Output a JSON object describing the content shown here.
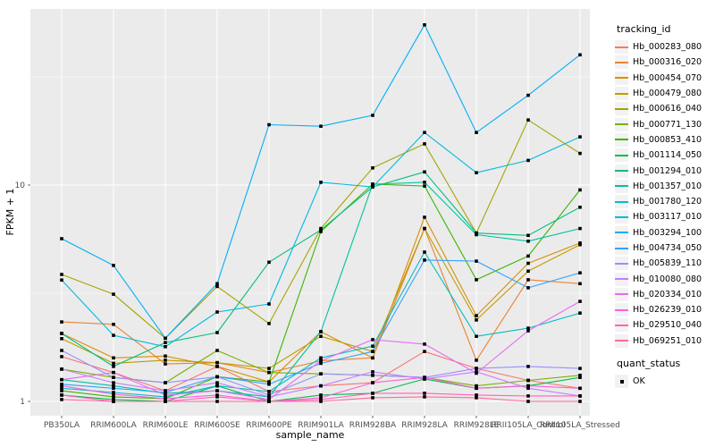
{
  "legend": {
    "tracking_title": "tracking_id",
    "quant_title": "quant_status",
    "quant_items": [
      {
        "label": "OK",
        "shape": "filled-square",
        "color": "#000000"
      }
    ]
  },
  "colors": {
    "panel_bg": "#EBEBEB",
    "grid": "#FFFFFF",
    "tick_label": "#4D4D4D",
    "axis_title": "#000000",
    "legend_key_bg": "#F2F2F2",
    "point": "#000000"
  },
  "chart_data": {
    "type": "line",
    "title": "",
    "xlabel": "sample_name",
    "ylabel": "FPKM + 1",
    "y_scale": "log10",
    "y_tick_labels": [
      "1",
      "10"
    ],
    "y_ticks": [
      1,
      10
    ],
    "y_minor_gridlines": [
      3.1623,
      31.6228
    ],
    "ylim": [
      0.86,
      66
    ],
    "grid": "on",
    "legend_position": "right",
    "point_shape": "filled-square",
    "categories": [
      "PB350LA",
      "RRIM600LA",
      "RRIM600LE",
      "RRIM600SE",
      "RRIM600PE",
      "RRIM901LA",
      "RRIM928BA",
      "RRIM928LA",
      "RRIM928LE",
      "RRII105LA_Control",
      "RRII105LA_Stressed"
    ],
    "series": [
      {
        "name": "Hb_000283_080",
        "color": "#F8766D",
        "values": [
          1.61,
          1.36,
          1.12,
          1.45,
          1.11,
          1.18,
          1.22,
          1.7,
          1.42,
          1.25,
          1.15
        ]
      },
      {
        "name": "Hb_000316_020",
        "color": "#EA8331",
        "values": [
          2.33,
          2.27,
          1.49,
          1.51,
          1.36,
          1.54,
          1.59,
          6.3,
          1.55,
          3.65,
          3.5
        ]
      },
      {
        "name": "Hb_000454_070",
        "color": "#D89000",
        "values": [
          2.06,
          1.59,
          1.62,
          1.45,
          1.23,
          2.1,
          1.59,
          7.1,
          2.49,
          4.35,
          5.4
        ]
      },
      {
        "name": "Hb_000479_080",
        "color": "#C09B00",
        "values": [
          1.95,
          1.5,
          1.55,
          1.51,
          1.42,
          2.0,
          1.7,
          6.3,
          2.38,
          4.0,
          5.3
        ]
      },
      {
        "name": "Hb_000616_040",
        "color": "#A3A500",
        "values": [
          3.86,
          3.13,
          1.96,
          3.4,
          2.29,
          6.3,
          12.0,
          15.5,
          6.0,
          20.0,
          14.0
        ]
      },
      {
        "name": "Hb_000771_130",
        "color": "#7CAE00",
        "values": [
          1.41,
          1.29,
          1.22,
          1.72,
          1.36,
          1.34,
          1.32,
          1.29,
          1.18,
          1.25,
          1.32
        ]
      },
      {
        "name": "Hb_000853_410",
        "color": "#39B600",
        "values": [
          1.12,
          1.05,
          1.03,
          1.3,
          1.23,
          6.1,
          10.1,
          9.9,
          3.65,
          4.7,
          9.5
        ]
      },
      {
        "name": "Hb_001114_050",
        "color": "#00BB4E",
        "values": [
          1.07,
          1.02,
          1.0,
          1.18,
          1.0,
          1.07,
          1.09,
          1.27,
          1.15,
          1.18,
          1.29
        ]
      },
      {
        "name": "Hb_001294_010",
        "color": "#00BF7D",
        "values": [
          2.06,
          1.45,
          1.87,
          2.08,
          4.4,
          6.2,
          9.8,
          11.5,
          6.0,
          5.85,
          7.9
        ]
      },
      {
        "name": "Hb_001357_010",
        "color": "#00C1A3",
        "values": [
          1.26,
          1.18,
          1.09,
          1.12,
          1.05,
          2.1,
          10.1,
          10.3,
          5.9,
          5.5,
          6.3
        ]
      },
      {
        "name": "Hb_001780_120",
        "color": "#00BFC4",
        "values": [
          1.15,
          1.1,
          1.05,
          1.18,
          1.11,
          1.59,
          1.8,
          4.9,
          2.0,
          2.18,
          2.56
        ]
      },
      {
        "name": "Hb_003117_010",
        "color": "#00BAE0",
        "values": [
          3.64,
          2.02,
          1.79,
          2.59,
          2.82,
          10.3,
          9.8,
          17.5,
          11.4,
          13.0,
          16.7
        ]
      },
      {
        "name": "Hb_003294_100",
        "color": "#00B0F6",
        "values": [
          5.65,
          4.25,
          1.96,
          3.5,
          19.0,
          18.7,
          21.0,
          55.0,
          17.5,
          26.0,
          40.0
        ]
      },
      {
        "name": "Hb_004734_050",
        "color": "#35A2FF",
        "values": [
          1.2,
          1.15,
          1.1,
          1.3,
          1.2,
          1.5,
          1.7,
          4.5,
          4.45,
          3.35,
          3.93
        ]
      },
      {
        "name": "Hb_005839_110",
        "color": "#9590FF",
        "values": [
          1.72,
          1.29,
          1.22,
          1.3,
          1.07,
          1.34,
          1.32,
          1.29,
          1.42,
          1.45,
          1.42
        ]
      },
      {
        "name": "Hb_010080_080",
        "color": "#C77CFF",
        "values": [
          1.41,
          1.22,
          1.12,
          1.22,
          1.05,
          1.18,
          1.37,
          1.27,
          1.37,
          1.15,
          1.06
        ]
      },
      {
        "name": "Hb_020334_010",
        "color": "#E76BF3",
        "values": [
          1.26,
          1.36,
          1.07,
          1.12,
          1.02,
          1.54,
          1.93,
          1.84,
          1.35,
          2.12,
          2.9
        ]
      },
      {
        "name": "Hb_026239_010",
        "color": "#FA62DB",
        "values": [
          1.18,
          1.08,
          1.03,
          1.07,
          1.0,
          1.04,
          1.22,
          1.29,
          1.15,
          1.18,
          1.15
        ]
      },
      {
        "name": "Hb_029510_040",
        "color": "#FF62BC",
        "values": [
          1.07,
          1.0,
          1.0,
          1.05,
          1.0,
          1.02,
          1.09,
          1.09,
          1.07,
          1.06,
          1.06
        ]
      },
      {
        "name": "Hb_069251_010",
        "color": "#FF6A98",
        "values": [
          1.02,
          1.0,
          1.0,
          1.0,
          1.0,
          1.0,
          1.04,
          1.05,
          1.04,
          1.0,
          1.0
        ]
      }
    ]
  }
}
